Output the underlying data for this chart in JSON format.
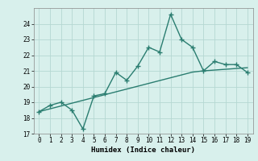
{
  "xlabel": "Humidex (Indice chaleur)",
  "x": [
    0,
    1,
    2,
    3,
    4,
    5,
    6,
    7,
    8,
    9,
    10,
    11,
    12,
    13,
    14,
    15,
    16,
    17,
    18,
    19
  ],
  "y_line": [
    18.4,
    18.8,
    19.0,
    18.5,
    17.3,
    19.4,
    19.55,
    20.9,
    20.4,
    21.3,
    22.5,
    22.2,
    24.6,
    23.0,
    22.5,
    21.0,
    21.6,
    21.4,
    21.4,
    20.9
  ],
  "y_trend": [
    18.4,
    18.58,
    18.76,
    18.94,
    19.12,
    19.3,
    19.48,
    19.66,
    19.84,
    20.02,
    20.2,
    20.38,
    20.56,
    20.74,
    20.92,
    21.0,
    21.05,
    21.1,
    21.15,
    21.2
  ],
  "line_color": "#2a7d70",
  "trend_color": "#2a7d70",
  "bg_color": "#d8f0ec",
  "grid_color": "#b5d8d2",
  "ylim": [
    17,
    25
  ],
  "xlim": [
    -0.5,
    19.5
  ],
  "yticks": [
    17,
    18,
    19,
    20,
    21,
    22,
    23,
    24
  ],
  "xticks": [
    0,
    1,
    2,
    3,
    4,
    5,
    6,
    7,
    8,
    9,
    10,
    11,
    12,
    13,
    14,
    15,
    16,
    17,
    18,
    19
  ],
  "marker": "+",
  "marker_size": 4,
  "linewidth": 1.0,
  "tick_fontsize": 5.5,
  "xlabel_fontsize": 6.5
}
